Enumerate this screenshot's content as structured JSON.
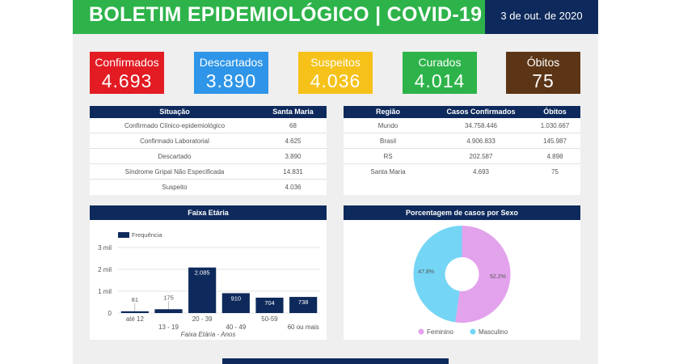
{
  "header": {
    "title": "BOLETIM EPIDEMIOLÓGICO | COVID-19",
    "date": "3 de out. de 2020"
  },
  "cards": [
    {
      "label": "Confirmados",
      "value": "4.693",
      "color": "#e31b23"
    },
    {
      "label": "Descartados",
      "value": "3.890",
      "color": "#2e95e8"
    },
    {
      "label": "Suspeitos",
      "value": "4.036",
      "color": "#f6c21a"
    },
    {
      "label": "Curados",
      "value": "4.014",
      "color": "#2db34a"
    },
    {
      "label": "Óbitos",
      "value": "75",
      "color": "#5c3516"
    }
  ],
  "situacao_table": {
    "headers": [
      "Situação",
      "Santa Maria"
    ],
    "rows": [
      [
        "Confirmado Clínico-epidemiológico",
        "68"
      ],
      [
        "Confirmado Laboratorial",
        "4.625"
      ],
      [
        "Descartado",
        "3.890"
      ],
      [
        "Síndrome Gripal Não Especificada",
        "14.831"
      ],
      [
        "Suspeito",
        "4.036"
      ]
    ]
  },
  "regiao_table": {
    "headers": [
      "Região",
      "Casos Confirmados",
      "Óbitos"
    ],
    "rows": [
      [
        "Mundo",
        "34.758.446",
        "1.030.667"
      ],
      [
        "Brasil",
        "4.906.833",
        "145.987"
      ],
      [
        "RS",
        "202.587",
        "4.898"
      ],
      [
        "Santa Maria",
        "4.693",
        "75"
      ]
    ]
  },
  "chart_data": [
    {
      "type": "bar",
      "title": "Faixa Etária",
      "xlabel": "Faixa Etária - Anos",
      "ylabel": "",
      "categories": [
        "até 12",
        "13 - 19",
        "20 - 39",
        "40 - 49",
        "50-59",
        "60 ou mais"
      ],
      "series": [
        {
          "name": "Frequência",
          "values": [
            81,
            175,
            2085,
            910,
            704,
            738
          ],
          "labels": [
            "81",
            "175",
            "2.085",
            "910",
            "704",
            "738"
          ]
        }
      ],
      "ylim": [
        0,
        3000
      ],
      "yticks": [
        0,
        1000,
        2000,
        3000
      ],
      "yticklabels": [
        "0",
        "1 mil",
        "2 mil",
        "3 mil"
      ],
      "legend": "top-left",
      "grid": true,
      "bar_color": "#0e2a5c"
    },
    {
      "type": "pie",
      "title": "Porcentagem de casos por Sexo",
      "labels": [
        "Feminino",
        "Masculino"
      ],
      "values": [
        52.2,
        47.8
      ],
      "value_labels": [
        "52.2%",
        "47.8%"
      ],
      "colors": [
        "#e3a2ec",
        "#74d5f5"
      ],
      "legend": "bottom"
    }
  ]
}
